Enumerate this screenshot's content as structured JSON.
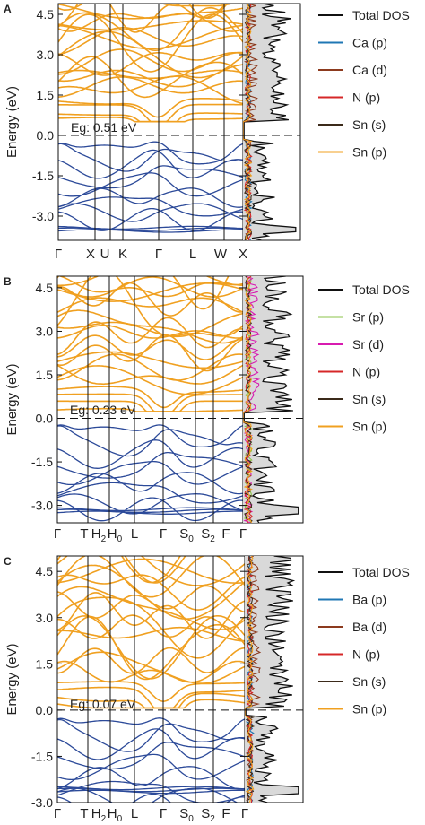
{
  "figure": {
    "panels": [
      {
        "letter": "A",
        "ylabel": "Energy (eV)",
        "gap_label": "Eg: 0.51 eV",
        "yticks": [
          4.5,
          3.0,
          1.5,
          0.0,
          -1.5,
          -3.0
        ],
        "kpoint_labels": [
          "Γ",
          "X",
          "U",
          "K",
          "Γ",
          "L",
          "W",
          "X"
        ],
        "legend": [
          "Total DOS",
          "Ca (p)",
          "Ca (d)",
          "N (p)",
          "Sn (s)",
          "Sn (p)"
        ],
        "legend_colors": [
          "#111111",
          "#1f77b4",
          "#8c3a1e",
          "#d62728",
          "#3b2a1a",
          "#f0a020"
        ]
      },
      {
        "letter": "B",
        "ylabel": "Energy (eV)",
        "gap_label": "Eg: 0.23 eV",
        "yticks": [
          4.5,
          3.0,
          1.5,
          0.0,
          -1.5,
          -3.0
        ],
        "kpoint_labels": [
          "Γ",
          "T",
          "H2",
          "H0",
          "L",
          "Γ",
          "S0",
          "S2",
          "F",
          "Γ"
        ],
        "legend": [
          "Total DOS",
          "Sr (p)",
          "Sr (d)",
          "N (p)",
          "Sn (s)",
          "Sn (p)"
        ],
        "legend_colors": [
          "#111111",
          "#8bc34a",
          "#d81bb0",
          "#d62728",
          "#3b2a1a",
          "#f0a020"
        ]
      },
      {
        "letter": "C",
        "ylabel": "Energy (eV)",
        "gap_label": "Eg: 0.07 eV",
        "yticks": [
          4.5,
          3.0,
          1.5,
          0.0,
          -1.5,
          -3.0
        ],
        "kpoint_labels": [
          "Γ",
          "T",
          "H2",
          "H0",
          "L",
          "Γ",
          "S0",
          "S2",
          "F",
          "Γ"
        ],
        "legend": [
          "Total DOS",
          "Ba (p)",
          "Ba (d)",
          "N (p)",
          "Sn (s)",
          "Sn (p)"
        ],
        "legend_colors": [
          "#111111",
          "#1f77b4",
          "#8c3a1e",
          "#d62728",
          "#3b2a1a",
          "#f0a020"
        ]
      }
    ]
  },
  "chart_data": [
    {
      "type": "line",
      "title": "",
      "ylabel": "Energy (eV)",
      "ylim": [
        -3.9,
        4.9
      ],
      "band_gap_eV": 0.51,
      "series": [
        {
          "name": "Total DOS"
        },
        {
          "name": "Ca (p)"
        },
        {
          "name": "Ca (d)"
        },
        {
          "name": "N (p)"
        },
        {
          "name": "Sn (s)"
        },
        {
          "name": "Sn (p)"
        }
      ]
    },
    {
      "type": "line",
      "title": "",
      "ylabel": "Energy (eV)",
      "ylim": [
        -3.6,
        4.9
      ],
      "band_gap_eV": 0.23,
      "series": [
        {
          "name": "Total DOS"
        },
        {
          "name": "Sr (p)"
        },
        {
          "name": "Sr (d)"
        },
        {
          "name": "N (p)"
        },
        {
          "name": "Sn (s)"
        },
        {
          "name": "Sn (p)"
        }
      ]
    },
    {
      "type": "line",
      "title": "",
      "ylabel": "Energy (eV)",
      "ylim": [
        -3.0,
        5.0
      ],
      "band_gap_eV": 0.07,
      "series": [
        {
          "name": "Total DOS"
        },
        {
          "name": "Ba (p)"
        },
        {
          "name": "Ba (d)"
        },
        {
          "name": "N (p)"
        },
        {
          "name": "Sn (s)"
        },
        {
          "name": "Sn (p)"
        }
      ]
    }
  ]
}
